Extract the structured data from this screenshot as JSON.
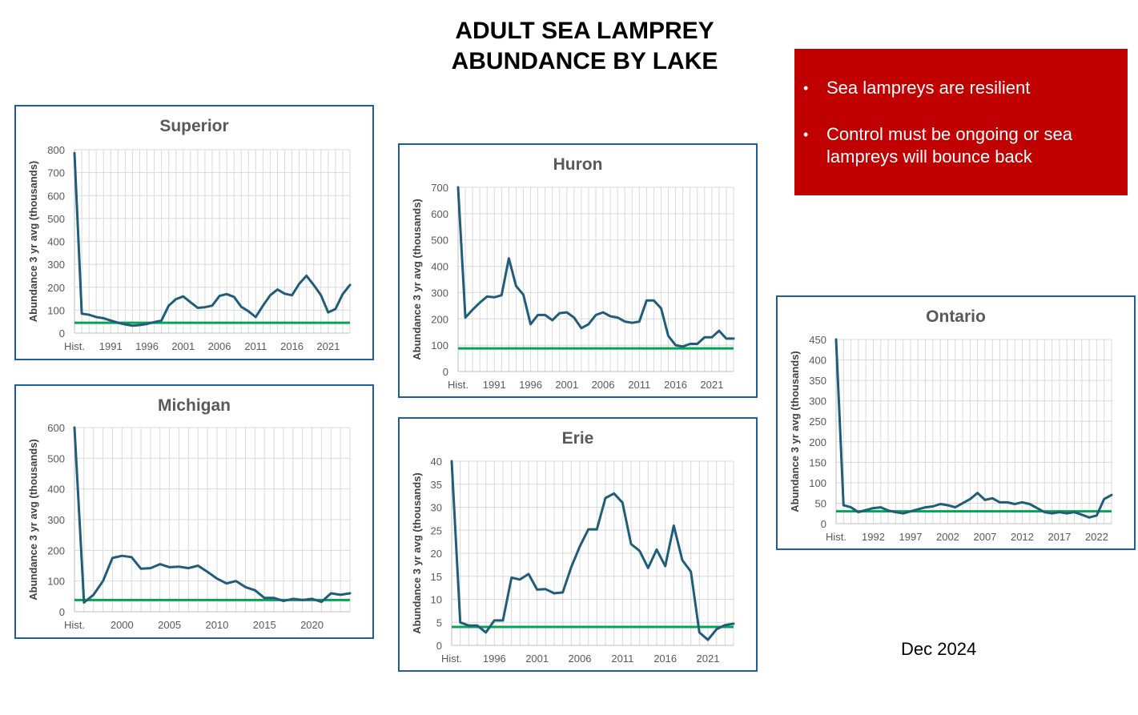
{
  "slide": {
    "title_line1": "ADULT SEA LAMPREY",
    "title_line2": "ABUNDANCE  BY LAKE",
    "bullets": [
      "Sea lampreys are resilient",
      "Control must be ongoing or sea lampreys will bounce back"
    ],
    "date": "Dec 2024"
  },
  "colors": {
    "series_line": "#1f5d7a",
    "target_line": "#00a651",
    "frame_border": "#1f5d9e",
    "grid": "#d9d9d9",
    "callout_bg": "#c00000"
  },
  "chart_data": [
    {
      "id": "superior",
      "type": "line",
      "title": "Superior",
      "ylabel": "Abundance 3 yr avg (thousands)",
      "ylim": [
        0,
        800
      ],
      "yticks": [
        0,
        100,
        200,
        300,
        400,
        500,
        600,
        700,
        800
      ],
      "xcount": 39,
      "xticks": [
        {
          "i": 0,
          "label": "Hist."
        },
        {
          "i": 5,
          "label": "1991"
        },
        {
          "i": 10,
          "label": "1996"
        },
        {
          "i": 15,
          "label": "2001"
        },
        {
          "i": 20,
          "label": "2006"
        },
        {
          "i": 25,
          "label": "2011"
        },
        {
          "i": 30,
          "label": "2016"
        },
        {
          "i": 35,
          "label": "2021"
        }
      ],
      "target": 45,
      "grid": true,
      "legend": "none",
      "series": [
        {
          "values": [
            785,
            85,
            80,
            70,
            65,
            55,
            45,
            38,
            32,
            35,
            40,
            48,
            55,
            120,
            148,
            160,
            135,
            110,
            113,
            120,
            162,
            170,
            158,
            115,
            95,
            70,
            120,
            165,
            190,
            172,
            165,
            215,
            250,
            210,
            165,
            90,
            105,
            170,
            210
          ]
        }
      ]
    },
    {
      "id": "michigan",
      "type": "line",
      "title": "Michigan",
      "ylabel": "Abundance 3 yr avg (thousands)",
      "ylim": [
        0,
        600
      ],
      "yticks": [
        0,
        100,
        200,
        300,
        400,
        500,
        600
      ],
      "xcount": 30,
      "xticks": [
        {
          "i": 0,
          "label": "Hist."
        },
        {
          "i": 5,
          "label": "2000"
        },
        {
          "i": 10,
          "label": "2005"
        },
        {
          "i": 15,
          "label": "2010"
        },
        {
          "i": 20,
          "label": "2015"
        },
        {
          "i": 25,
          "label": "2020"
        }
      ],
      "target": 38,
      "grid": true,
      "legend": "none",
      "series": [
        {
          "values": [
            600,
            30,
            55,
            100,
            175,
            182,
            178,
            140,
            142,
            155,
            145,
            147,
            142,
            150,
            130,
            108,
            92,
            100,
            80,
            70,
            45,
            45,
            35,
            42,
            38,
            42,
            32,
            60,
            55,
            60
          ]
        }
      ]
    },
    {
      "id": "huron",
      "type": "line",
      "title": "Huron",
      "ylabel": "Abundance 3 yr avg (thousands)",
      "ylim": [
        0,
        700
      ],
      "yticks": [
        0,
        100,
        200,
        300,
        400,
        500,
        600,
        700
      ],
      "xcount": 39,
      "xticks": [
        {
          "i": 0,
          "label": "Hist."
        },
        {
          "i": 5,
          "label": "1991"
        },
        {
          "i": 10,
          "label": "1996"
        },
        {
          "i": 15,
          "label": "2001"
        },
        {
          "i": 20,
          "label": "2006"
        },
        {
          "i": 25,
          "label": "2011"
        },
        {
          "i": 30,
          "label": "2016"
        },
        {
          "i": 35,
          "label": "2021"
        }
      ],
      "target": 88,
      "grid": true,
      "legend": "none",
      "series": [
        {
          "values": [
            700,
            205,
            235,
            262,
            285,
            282,
            290,
            430,
            325,
            292,
            180,
            215,
            215,
            195,
            222,
            225,
            205,
            165,
            180,
            215,
            225,
            210,
            205,
            190,
            185,
            190,
            270,
            270,
            240,
            135,
            100,
            95,
            105,
            105,
            130,
            130,
            155,
            125,
            125
          ]
        }
      ]
    },
    {
      "id": "erie",
      "type": "line",
      "title": "Erie",
      "ylabel": "Abundance 3 yr avg (thousands)",
      "ylim": [
        0,
        40
      ],
      "yticks": [
        0,
        5,
        10,
        15,
        20,
        25,
        30,
        35,
        40
      ],
      "xcount": 34,
      "xticks": [
        {
          "i": 0,
          "label": "Hist."
        },
        {
          "i": 5,
          "label": "1996"
        },
        {
          "i": 10,
          "label": "2001"
        },
        {
          "i": 15,
          "label": "2006"
        },
        {
          "i": 20,
          "label": "2011"
        },
        {
          "i": 25,
          "label": "2016"
        },
        {
          "i": 30,
          "label": "2021"
        }
      ],
      "target": 4,
      "grid": true,
      "legend": "none",
      "series": [
        {
          "values": [
            40,
            5,
            4.3,
            4.3,
            2.8,
            5.4,
            5.4,
            14.7,
            14.3,
            15.5,
            12.1,
            12.2,
            11.3,
            11.5,
            17,
            21.5,
            25.2,
            25.2,
            32,
            33,
            31,
            22,
            20.5,
            16.8,
            20.8,
            17.2,
            26,
            18.5,
            16,
            2.8,
            1.2,
            3.5,
            4.4,
            4.7
          ]
        }
      ]
    },
    {
      "id": "ontario",
      "type": "line",
      "title": "Ontario",
      "ylabel": "Abundance 3 yr avg (thousands)",
      "ylim": [
        0,
        450
      ],
      "yticks": [
        0,
        50,
        100,
        150,
        200,
        250,
        300,
        350,
        400,
        450
      ],
      "xcount": 38,
      "xticks": [
        {
          "i": 0,
          "label": "Hist."
        },
        {
          "i": 5,
          "label": "1992"
        },
        {
          "i": 10,
          "label": "1997"
        },
        {
          "i": 15,
          "label": "2002"
        },
        {
          "i": 20,
          "label": "2007"
        },
        {
          "i": 25,
          "label": "2012"
        },
        {
          "i": 30,
          "label": "2017"
        },
        {
          "i": 35,
          "label": "2022"
        }
      ],
      "target": 30,
      "grid": true,
      "legend": "none",
      "series": [
        {
          "values": [
            450,
            45,
            40,
            28,
            33,
            38,
            40,
            32,
            28,
            25,
            30,
            35,
            40,
            42,
            48,
            45,
            40,
            50,
            60,
            75,
            58,
            62,
            52,
            52,
            48,
            52,
            48,
            38,
            28,
            25,
            28,
            25,
            28,
            22,
            15,
            20,
            60,
            70
          ]
        }
      ]
    }
  ]
}
